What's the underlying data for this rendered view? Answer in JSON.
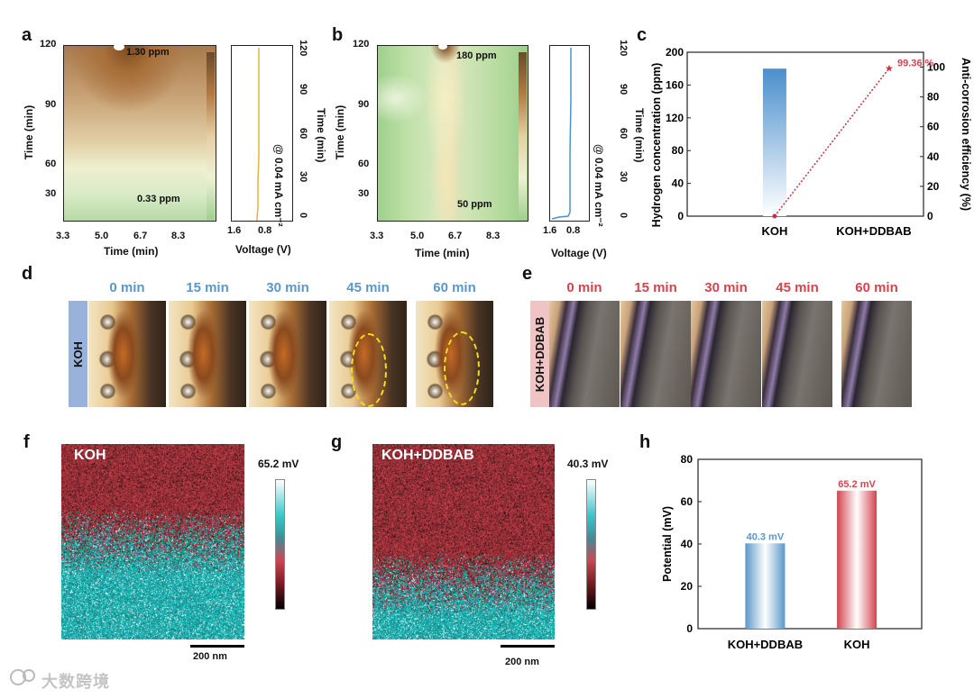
{
  "panels": {
    "a": {
      "letter": "a",
      "map": {
        "ylabel": "Time (min)",
        "xlabel": "Time (min)",
        "yticks": [
          "120",
          "90",
          "60",
          "30"
        ],
        "xticks": [
          "3.3",
          "5.0",
          "6.7",
          "8.3"
        ],
        "label_top": "1.30 ppm",
        "label_bottom": "0.33 ppm"
      },
      "side": {
        "ylabel": "Time (min)",
        "annotation": "@ 0.04 mA cm⁻²",
        "yticks": [
          "120",
          "90",
          "60",
          "30",
          "0"
        ],
        "xticks": [
          "1.6",
          "0.8"
        ],
        "xlabel": "Voltage (V)"
      }
    },
    "b": {
      "letter": "b",
      "map": {
        "ylabel": "Time (min)",
        "xlabel": "Time (min)",
        "yticks": [
          "120",
          "90",
          "60",
          "30"
        ],
        "xticks": [
          "3.3",
          "5.0",
          "6.7",
          "8.3"
        ],
        "label_top": "180 ppm",
        "label_bottom": "50 ppm"
      },
      "side": {
        "ylabel": "Time (min)",
        "annotation": "@ 0.04 mA cm⁻²",
        "yticks": [
          "120",
          "90",
          "60",
          "30",
          "0"
        ],
        "xticks": [
          "1.6",
          "0.8"
        ],
        "xlabel": "Voltage (V)"
      }
    },
    "c": {
      "letter": "c",
      "ylabel_left": "Hydrogen concentration (ppm)",
      "ylabel_right": "Anti-corrosion efficiency (%)",
      "yticks_left": [
        "200",
        "160",
        "120",
        "80",
        "40",
        "0"
      ],
      "yticks_right": [
        "100",
        "80",
        "60",
        "40",
        "20",
        "0"
      ],
      "xticks": [
        "KOH",
        "KOH+DDBAB"
      ],
      "efficiency_label": "99.36 %"
    },
    "d": {
      "letter": "d",
      "row_label": "KOH",
      "times": [
        "0 min",
        "15 min",
        "30 min",
        "45 min",
        "60 min"
      ]
    },
    "e": {
      "letter": "e",
      "row_label": "KOH+DDBAB",
      "times": [
        "0 min",
        "15 min",
        "30 min",
        "45 min",
        "60 min"
      ]
    },
    "f": {
      "letter": "f",
      "title": "KOH",
      "scale_max": "65.2 mV",
      "scalebar": "200 nm"
    },
    "g": {
      "letter": "g",
      "title": "KOH+DDBAB",
      "scale_max": "40.3 mV",
      "scalebar": "200 nm"
    },
    "h": {
      "letter": "h",
      "ylabel": "Potential (mV)",
      "yticks": [
        "80",
        "60",
        "40",
        "20",
        "0"
      ]
    }
  },
  "watermark": "大数跨境",
  "chart_data": [
    {
      "type": "bar",
      "panel": "c",
      "categories": [
        "KOH",
        "KOH+DDBAB"
      ],
      "series": [
        {
          "name": "Hydrogen concentration (ppm)",
          "values": [
            180,
            0
          ]
        },
        {
          "name": "Anti-corrosion efficiency (%)",
          "values": [
            0,
            99.36
          ]
        }
      ],
      "ylim": [
        0,
        200
      ],
      "ylim_right": [
        0,
        110
      ],
      "ylabel": "Hydrogen concentration (ppm)",
      "ylabel_right": "Anti-corrosion efficiency (%)"
    },
    {
      "type": "bar",
      "panel": "h",
      "categories": [
        "KOH+DDBAB",
        "KOH"
      ],
      "values": [
        40.3,
        65.2
      ],
      "value_labels": [
        "40.3 mV",
        "65.2 mV"
      ],
      "colors": [
        "#5b97c9",
        "#d2454f"
      ],
      "ylabel": "Potential (mV)",
      "ylim": [
        0,
        80
      ]
    }
  ]
}
